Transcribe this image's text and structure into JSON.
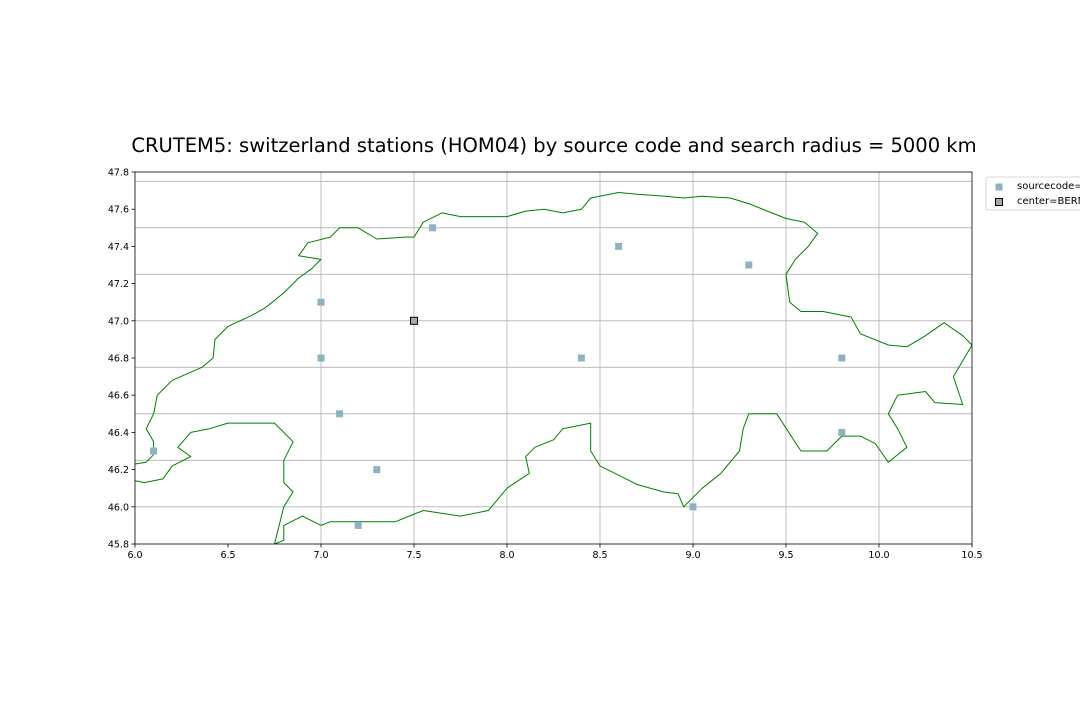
{
  "chart_data": {
    "type": "scatter",
    "title": "CRUTEM5: switzerland stations (HOM04) by source code and search radius = 5000 km",
    "xlabel": "",
    "ylabel": "",
    "xlim": [
      6.0,
      10.5
    ],
    "ylim": [
      45.8,
      47.8
    ],
    "x_ticks": [
      "6.0",
      "6.5",
      "7.0",
      "7.5",
      "8.0",
      "8.5",
      "9.0",
      "9.5",
      "10.0",
      "10.5"
    ],
    "y_ticks": [
      "45.8",
      "46.0",
      "46.2",
      "46.4",
      "46.6",
      "46.8",
      "47.0",
      "47.2",
      "47.4",
      "47.6",
      "47.8"
    ],
    "x_gridlines": [
      7.0,
      7.5,
      8.0,
      8.5,
      9.0,
      9.5,
      10.0
    ],
    "y_gridlines": [
      46.0,
      46.25,
      46.5,
      46.75,
      47.0,
      47.25,
      47.5,
      47.75
    ],
    "grid": true,
    "legend_placement": "outside-top-right",
    "border_color": "#008000",
    "series": [
      {
        "name": "sourcecode=",
        "color": "#8fb2c0",
        "marker": "square",
        "points": [
          {
            "x": 7.6,
            "y": 47.5
          },
          {
            "x": 8.6,
            "y": 47.4
          },
          {
            "x": 9.3,
            "y": 47.3
          },
          {
            "x": 7.0,
            "y": 47.1
          },
          {
            "x": 7.0,
            "y": 46.8
          },
          {
            "x": 8.4,
            "y": 46.8
          },
          {
            "x": 9.8,
            "y": 46.8
          },
          {
            "x": 7.1,
            "y": 46.5
          },
          {
            "x": 9.8,
            "y": 46.4
          },
          {
            "x": 6.1,
            "y": 46.3
          },
          {
            "x": 7.3,
            "y": 46.2
          },
          {
            "x": 9.0,
            "y": 46.0
          },
          {
            "x": 7.2,
            "y": 45.9
          }
        ]
      },
      {
        "name": "center=BERN",
        "color": "#a9a9a9",
        "edge_color": "#000000",
        "marker": "square",
        "points": [
          {
            "x": 7.5,
            "y": 47.0
          }
        ]
      }
    ],
    "border_outline": [
      [
        6.0,
        46.23
      ],
      [
        6.06,
        46.24
      ],
      [
        6.1,
        46.28
      ],
      [
        6.1,
        46.35
      ],
      [
        6.06,
        46.42
      ],
      [
        6.1,
        46.5
      ],
      [
        6.12,
        46.6
      ],
      [
        6.2,
        46.68
      ],
      [
        6.36,
        46.75
      ],
      [
        6.42,
        46.8
      ],
      [
        6.43,
        46.9
      ],
      [
        6.5,
        46.97
      ],
      [
        6.63,
        47.03
      ],
      [
        6.7,
        47.07
      ],
      [
        6.8,
        47.15
      ],
      [
        6.88,
        47.23
      ],
      [
        6.95,
        47.28
      ],
      [
        7.0,
        47.33
      ],
      [
        6.88,
        47.35
      ],
      [
        6.93,
        47.42
      ],
      [
        7.05,
        47.45
      ],
      [
        7.1,
        47.5
      ],
      [
        7.2,
        47.5
      ],
      [
        7.3,
        47.44
      ],
      [
        7.45,
        47.45
      ],
      [
        7.5,
        47.45
      ],
      [
        7.55,
        47.53
      ],
      [
        7.65,
        47.58
      ],
      [
        7.75,
        47.56
      ],
      [
        7.9,
        47.56
      ],
      [
        8.0,
        47.56
      ],
      [
        8.1,
        47.59
      ],
      [
        8.2,
        47.6
      ],
      [
        8.3,
        47.58
      ],
      [
        8.4,
        47.6
      ],
      [
        8.45,
        47.66
      ],
      [
        8.6,
        47.69
      ],
      [
        8.7,
        47.68
      ],
      [
        8.85,
        47.67
      ],
      [
        8.95,
        47.66
      ],
      [
        9.05,
        47.67
      ],
      [
        9.2,
        47.66
      ],
      [
        9.3,
        47.63
      ],
      [
        9.4,
        47.59
      ],
      [
        9.5,
        47.55
      ],
      [
        9.6,
        47.53
      ],
      [
        9.67,
        47.47
      ],
      [
        9.62,
        47.4
      ],
      [
        9.55,
        47.33
      ],
      [
        9.5,
        47.25
      ],
      [
        9.52,
        47.1
      ],
      [
        9.58,
        47.05
      ],
      [
        9.7,
        47.05
      ],
      [
        9.85,
        47.02
      ],
      [
        9.9,
        46.93
      ],
      [
        10.05,
        46.87
      ],
      [
        10.15,
        46.86
      ],
      [
        10.25,
        46.92
      ],
      [
        10.35,
        46.99
      ],
      [
        10.45,
        46.92
      ],
      [
        10.5,
        46.87
      ],
      [
        10.4,
        46.7
      ],
      [
        10.45,
        46.55
      ],
      [
        10.3,
        46.56
      ],
      [
        10.25,
        46.62
      ],
      [
        10.1,
        46.6
      ],
      [
        10.05,
        46.5
      ],
      [
        10.1,
        46.42
      ],
      [
        10.15,
        46.32
      ],
      [
        10.05,
        46.24
      ],
      [
        9.98,
        46.34
      ],
      [
        9.9,
        46.38
      ],
      [
        9.8,
        46.38
      ],
      [
        9.72,
        46.3
      ],
      [
        9.58,
        46.3
      ],
      [
        9.45,
        46.5
      ],
      [
        9.38,
        46.5
      ],
      [
        9.3,
        46.5
      ],
      [
        9.27,
        46.42
      ],
      [
        9.25,
        46.3
      ],
      [
        9.15,
        46.18
      ],
      [
        9.05,
        46.1
      ],
      [
        8.95,
        46.0
      ],
      [
        8.92,
        46.07
      ],
      [
        8.84,
        46.08
      ],
      [
        8.7,
        46.12
      ],
      [
        8.6,
        46.17
      ],
      [
        8.5,
        46.22
      ],
      [
        8.45,
        46.3
      ],
      [
        8.45,
        46.45
      ],
      [
        8.3,
        46.42
      ],
      [
        8.25,
        46.36
      ],
      [
        8.15,
        46.32
      ],
      [
        8.1,
        46.27
      ],
      [
        8.12,
        46.18
      ],
      [
        8.0,
        46.1
      ],
      [
        7.9,
        45.98
      ],
      [
        7.75,
        45.95
      ],
      [
        7.55,
        45.98
      ],
      [
        7.4,
        45.92
      ],
      [
        7.3,
        45.92
      ],
      [
        7.05,
        45.92
      ],
      [
        7.0,
        45.9
      ],
      [
        6.9,
        45.95
      ],
      [
        6.8,
        45.9
      ],
      [
        6.8,
        45.82
      ],
      [
        6.75,
        45.8
      ],
      [
        6.8,
        46.0
      ],
      [
        6.85,
        46.08
      ],
      [
        6.8,
        46.13
      ],
      [
        6.8,
        46.25
      ],
      [
        6.85,
        46.35
      ],
      [
        6.75,
        46.45
      ],
      [
        6.6,
        46.45
      ],
      [
        6.5,
        46.45
      ],
      [
        6.4,
        46.42
      ],
      [
        6.3,
        46.4
      ],
      [
        6.23,
        46.32
      ],
      [
        6.3,
        46.27
      ],
      [
        6.2,
        46.22
      ],
      [
        6.15,
        46.15
      ],
      [
        6.05,
        46.13
      ],
      [
        6.0,
        46.14
      ]
    ]
  }
}
